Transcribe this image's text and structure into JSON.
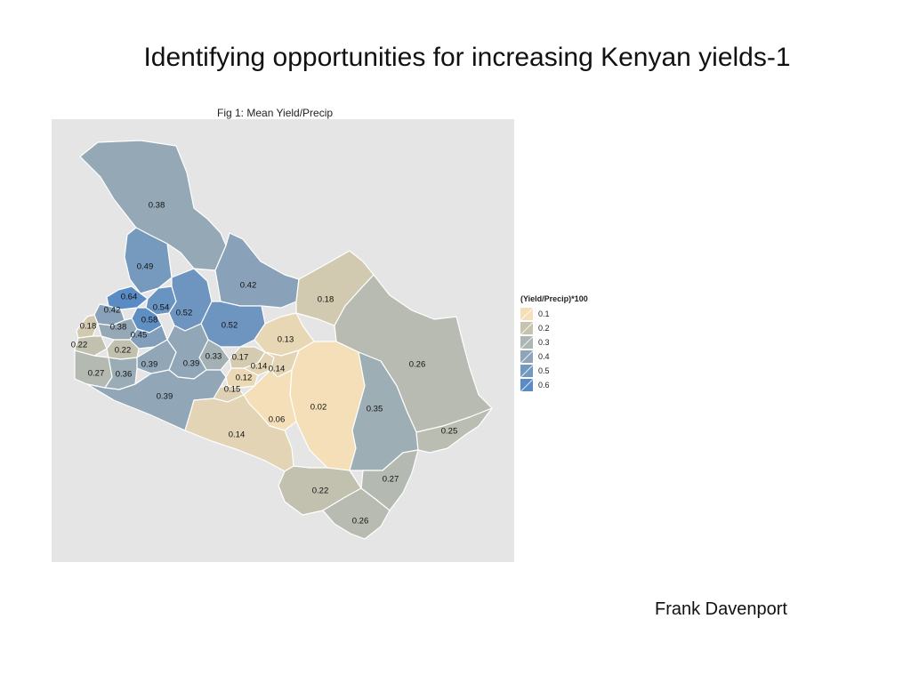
{
  "slide": {
    "title": "Identifying opportunities for increasing Kenyan yields-1",
    "author": "Frank Davenport"
  },
  "figure": {
    "title": "Fig 1: Mean Yield/Precip",
    "background_color": "#e5e5e5",
    "legend": {
      "title": "(Yield/Precip)*100",
      "items": [
        {
          "label": "0.1",
          "color": "#f4dfb8"
        },
        {
          "label": "0.2",
          "color": "#c8c3ae"
        },
        {
          "label": "0.3",
          "color": "#acb6b3"
        },
        {
          "label": "0.4",
          "color": "#8ea5b7"
        },
        {
          "label": "0.5",
          "color": "#7398bf"
        },
        {
          "label": "0.6",
          "color": "#5a8bc4"
        }
      ]
    },
    "regions": [
      {
        "label": "0.38",
        "value": 0.38
      },
      {
        "label": "0.49",
        "value": 0.49
      },
      {
        "label": "0.42",
        "value": 0.42
      },
      {
        "label": "0.18",
        "value": 0.18
      },
      {
        "label": "0.64",
        "value": 0.64
      },
      {
        "label": "0.54",
        "value": 0.54
      },
      {
        "label": "0.42",
        "value": 0.42
      },
      {
        "label": "0.58",
        "value": 0.58
      },
      {
        "label": "0.52",
        "value": 0.52
      },
      {
        "label": "0.18",
        "value": 0.18
      },
      {
        "label": "0.38",
        "value": 0.38
      },
      {
        "label": "0.45",
        "value": 0.45
      },
      {
        "label": "0.52",
        "value": 0.52
      },
      {
        "label": "0.22",
        "value": 0.22
      },
      {
        "label": "0.22",
        "value": 0.22
      },
      {
        "label": "0.13",
        "value": 0.13
      },
      {
        "label": "0.26",
        "value": 0.26
      },
      {
        "label": "0.33",
        "value": 0.33
      },
      {
        "label": "0.17",
        "value": 0.17
      },
      {
        "label": "0.39",
        "value": 0.39
      },
      {
        "label": "0.39",
        "value": 0.39
      },
      {
        "label": "0.14",
        "value": 0.14
      },
      {
        "label": "0.14",
        "value": 0.14
      },
      {
        "label": "0.27",
        "value": 0.27
      },
      {
        "label": "0.36",
        "value": 0.36
      },
      {
        "label": "0.12",
        "value": 0.12
      },
      {
        "label": "0.15",
        "value": 0.15
      },
      {
        "label": "0.39",
        "value": 0.39
      },
      {
        "label": "0.02",
        "value": 0.02
      },
      {
        "label": "0.35",
        "value": 0.35
      },
      {
        "label": "0.06",
        "value": 0.06
      },
      {
        "label": "0.25",
        "value": 0.25
      },
      {
        "label": "0.14",
        "value": 0.14
      },
      {
        "label": "0.27",
        "value": 0.27
      },
      {
        "label": "0.22",
        "value": 0.22
      },
      {
        "label": "0.26",
        "value": 0.26
      }
    ]
  }
}
